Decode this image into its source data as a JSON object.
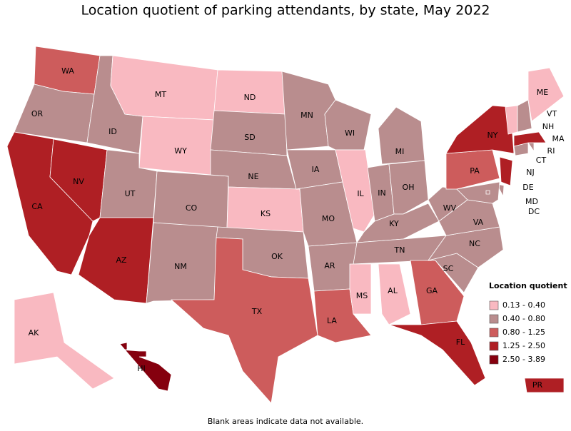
{
  "title": "Location quotient of parking attendants, by state, May 2022",
  "footnote": "Blank areas indicate data not available.",
  "legend": {
    "title": "Location quotient",
    "items": [
      {
        "label": "0.13 - 0.40",
        "color": "#f9b9c1"
      },
      {
        "label": "0.40 - 0.80",
        "color": "#b98d8e"
      },
      {
        "label": "0.80 - 1.25",
        "color": "#cd5c5c"
      },
      {
        "label": "1.25 - 2.50",
        "color": "#af1f24"
      },
      {
        "label": "2.50 - 3.89",
        "color": "#85000e"
      }
    ]
  },
  "states": [
    {
      "label": "WA",
      "color": "#cd5c5c"
    },
    {
      "label": "OR",
      "color": "#b98d8e"
    },
    {
      "label": "CA",
      "color": "#af1f24"
    },
    {
      "label": "NV",
      "color": "#af1f24"
    },
    {
      "label": "ID",
      "color": "#b98d8e"
    },
    {
      "label": "MT",
      "color": "#f9b9c1"
    },
    {
      "label": "WY",
      "color": "#f9b9c1"
    },
    {
      "label": "UT",
      "color": "#b98d8e"
    },
    {
      "label": "AZ",
      "color": "#af1f24"
    },
    {
      "label": "CO",
      "color": "#b98d8e"
    },
    {
      "label": "NM",
      "color": "#b98d8e"
    },
    {
      "label": "ND",
      "color": "#f9b9c1"
    },
    {
      "label": "SD",
      "color": "#b98d8e"
    },
    {
      "label": "NE",
      "color": "#b98d8e"
    },
    {
      "label": "KS",
      "color": "#f9b9c1"
    },
    {
      "label": "OK",
      "color": "#b98d8e"
    },
    {
      "label": "TX",
      "color": "#cd5c5c"
    },
    {
      "label": "MN",
      "color": "#b98d8e"
    },
    {
      "label": "IA",
      "color": "#b98d8e"
    },
    {
      "label": "MO",
      "color": "#b98d8e"
    },
    {
      "label": "AR",
      "color": "#b98d8e"
    },
    {
      "label": "LA",
      "color": "#cd5c5c"
    },
    {
      "label": "WI",
      "color": "#b98d8e"
    },
    {
      "label": "IL",
      "color": "#f9b9c1"
    },
    {
      "label": "MI",
      "color": "#b98d8e"
    },
    {
      "label": "IN",
      "color": "#b98d8e"
    },
    {
      "label": "OH",
      "color": "#b98d8e"
    },
    {
      "label": "KY",
      "color": "#b98d8e"
    },
    {
      "label": "TN",
      "color": "#b98d8e"
    },
    {
      "label": "MS",
      "color": "#f9b9c1"
    },
    {
      "label": "AL",
      "color": "#f9b9c1"
    },
    {
      "label": "GA",
      "color": "#cd5c5c"
    },
    {
      "label": "FL",
      "color": "#af1f24"
    },
    {
      "label": "SC",
      "color": "#b98d8e"
    },
    {
      "label": "NC",
      "color": "#b98d8e"
    },
    {
      "label": "VA",
      "color": "#b98d8e"
    },
    {
      "label": "WV",
      "color": "#b98d8e"
    },
    {
      "label": "PA",
      "color": "#cd5c5c"
    },
    {
      "label": "NY",
      "color": "#af1f24"
    },
    {
      "label": "NJ",
      "color": "#af1f24"
    },
    {
      "label": "DE",
      "color": "#b98d8e"
    },
    {
      "label": "MD",
      "color": "#b98d8e"
    },
    {
      "label": "DC",
      "color": "#b98d8e"
    },
    {
      "label": "CT",
      "color": "#b98d8e"
    },
    {
      "label": "RI",
      "color": "#b98d8e"
    },
    {
      "label": "MA",
      "color": "#af1f24"
    },
    {
      "label": "VT",
      "color": "#f9b9c1"
    },
    {
      "label": "NH",
      "color": "#b98d8e"
    },
    {
      "label": "ME",
      "color": "#f9b9c1"
    },
    {
      "label": "AK",
      "color": "#f9b9c1"
    },
    {
      "label": "HI",
      "color": "#85000e"
    },
    {
      "label": "PR",
      "color": "#af1f24"
    }
  ]
}
